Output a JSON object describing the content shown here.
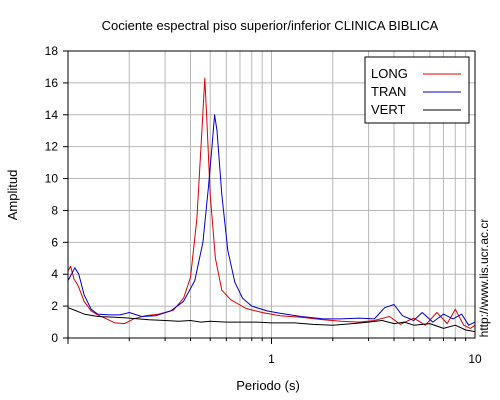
{
  "chart_data": {
    "type": "line",
    "title": "Cociente espectral piso superior/inferior  CLINICA BIBLICA",
    "xlabel": "Periodo (s)",
    "ylabel": "Amplitud",
    "x_scale": "log",
    "xlim": [
      0.1,
      10
    ],
    "ylim": [
      0,
      18
    ],
    "x_tick_labels": [
      {
        "value": 1,
        "label": "1"
      },
      {
        "value": 10,
        "label": "10"
      }
    ],
    "y_ticks": [
      0,
      2,
      4,
      6,
      8,
      10,
      12,
      14,
      16,
      18
    ],
    "grid": true,
    "legend_position": "top-right",
    "watermark": "http://www.lis.ucr.ac.cr",
    "series": [
      {
        "name": "LONG",
        "color": "#dd0000",
        "points": [
          [
            0.1,
            4.2
          ],
          [
            0.103,
            4.5
          ],
          [
            0.107,
            3.7
          ],
          [
            0.112,
            3.3
          ],
          [
            0.12,
            2.3
          ],
          [
            0.13,
            1.7
          ],
          [
            0.14,
            1.45
          ],
          [
            0.155,
            1.2
          ],
          [
            0.17,
            0.95
          ],
          [
            0.19,
            0.9
          ],
          [
            0.21,
            1.2
          ],
          [
            0.24,
            1.4
          ],
          [
            0.28,
            1.5
          ],
          [
            0.33,
            1.75
          ],
          [
            0.37,
            2.5
          ],
          [
            0.4,
            3.8
          ],
          [
            0.43,
            7.5
          ],
          [
            0.455,
            13.0
          ],
          [
            0.47,
            16.3
          ],
          [
            0.48,
            14.0
          ],
          [
            0.5,
            9.0
          ],
          [
            0.53,
            5.0
          ],
          [
            0.57,
            3.0
          ],
          [
            0.63,
            2.4
          ],
          [
            0.75,
            1.85
          ],
          [
            0.9,
            1.6
          ],
          [
            1.1,
            1.4
          ],
          [
            1.4,
            1.3
          ],
          [
            1.8,
            1.15
          ],
          [
            2.2,
            1.05
          ],
          [
            2.7,
            1.0
          ],
          [
            3.2,
            1.1
          ],
          [
            3.8,
            1.35
          ],
          [
            4.3,
            0.85
          ],
          [
            5.0,
            1.25
          ],
          [
            5.7,
            0.8
          ],
          [
            6.5,
            1.6
          ],
          [
            7.3,
            0.9
          ],
          [
            8.0,
            1.8
          ],
          [
            8.8,
            0.8
          ],
          [
            9.5,
            0.6
          ],
          [
            10.0,
            0.8
          ]
        ]
      },
      {
        "name": "TRAN",
        "color": "#0000cc",
        "points": [
          [
            0.1,
            3.6
          ],
          [
            0.104,
            4.0
          ],
          [
            0.108,
            4.4
          ],
          [
            0.113,
            4.0
          ],
          [
            0.12,
            2.7
          ],
          [
            0.13,
            1.8
          ],
          [
            0.14,
            1.5
          ],
          [
            0.16,
            1.45
          ],
          [
            0.18,
            1.45
          ],
          [
            0.2,
            1.6
          ],
          [
            0.23,
            1.35
          ],
          [
            0.27,
            1.4
          ],
          [
            0.32,
            1.7
          ],
          [
            0.37,
            2.3
          ],
          [
            0.42,
            3.6
          ],
          [
            0.46,
            6.0
          ],
          [
            0.49,
            9.5
          ],
          [
            0.51,
            12.0
          ],
          [
            0.525,
            14.0
          ],
          [
            0.54,
            13.0
          ],
          [
            0.57,
            9.0
          ],
          [
            0.61,
            5.5
          ],
          [
            0.66,
            3.5
          ],
          [
            0.72,
            2.5
          ],
          [
            0.8,
            2.0
          ],
          [
            0.95,
            1.7
          ],
          [
            1.1,
            1.55
          ],
          [
            1.4,
            1.35
          ],
          [
            1.8,
            1.2
          ],
          [
            2.2,
            1.2
          ],
          [
            2.7,
            1.25
          ],
          [
            3.2,
            1.2
          ],
          [
            3.6,
            1.9
          ],
          [
            4.0,
            2.1
          ],
          [
            4.4,
            1.4
          ],
          [
            5.0,
            1.1
          ],
          [
            5.5,
            1.6
          ],
          [
            6.2,
            1.0
          ],
          [
            7.0,
            1.5
          ],
          [
            7.8,
            1.2
          ],
          [
            8.6,
            1.5
          ],
          [
            9.3,
            0.8
          ],
          [
            10.0,
            1.0
          ]
        ]
      },
      {
        "name": "VERT",
        "color": "#000000",
        "points": [
          [
            0.1,
            1.9
          ],
          [
            0.11,
            1.7
          ],
          [
            0.12,
            1.5
          ],
          [
            0.14,
            1.35
          ],
          [
            0.17,
            1.3
          ],
          [
            0.2,
            1.25
          ],
          [
            0.25,
            1.15
          ],
          [
            0.3,
            1.1
          ],
          [
            0.35,
            1.05
          ],
          [
            0.4,
            1.1
          ],
          [
            0.45,
            1.0
          ],
          [
            0.5,
            1.05
          ],
          [
            0.6,
            1.0
          ],
          [
            0.7,
            1.0
          ],
          [
            0.85,
            1.0
          ],
          [
            1.0,
            0.95
          ],
          [
            1.3,
            0.95
          ],
          [
            1.6,
            0.85
          ],
          [
            2.0,
            0.8
          ],
          [
            2.5,
            0.9
          ],
          [
            3.0,
            1.0
          ],
          [
            3.5,
            1.1
          ],
          [
            4.0,
            0.9
          ],
          [
            4.5,
            1.0
          ],
          [
            5.0,
            0.8
          ],
          [
            6.0,
            0.9
          ],
          [
            7.0,
            0.6
          ],
          [
            8.0,
            0.8
          ],
          [
            9.0,
            0.5
          ],
          [
            10.0,
            0.4
          ]
        ]
      }
    ]
  }
}
